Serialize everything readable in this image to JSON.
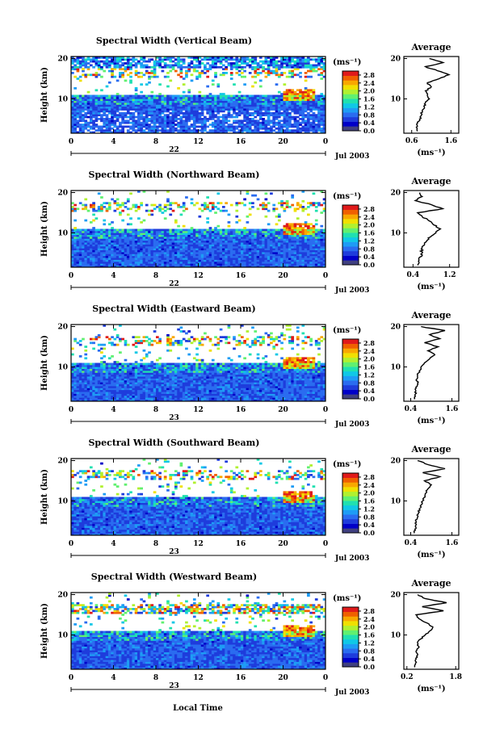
{
  "figure": {
    "xlabel": "Local Time",
    "ylabel": "Height (km)",
    "date_label": "Jul 2003",
    "unit_label": "(ms⁻¹)",
    "avg_unit_label": "(ms⁻¹)",
    "avg_title": "Average",
    "colors": [
      "#404080",
      "#0000c8",
      "#1e3cdc",
      "#2a6cf0",
      "#1e9cf5",
      "#10c8e6",
      "#20e0b0",
      "#60f070",
      "#b0f030",
      "#f0e000",
      "#f8a800",
      "#f06000",
      "#e01a1a"
    ]
  },
  "chart_data": [
    {
      "type": "heatmap",
      "title": "Spectral Width (Vertical Beam)",
      "xlabel": "Local Time",
      "ylabel": "Height (km)",
      "x_ticks": [
        "0",
        "4",
        "8",
        "12",
        "16",
        "20",
        "0"
      ],
      "xlim": [
        0,
        24
      ],
      "y_ticks": [
        "10",
        "20"
      ],
      "ylim": [
        1.5,
        20.5
      ],
      "day_label": "22",
      "colorbar_ticks": [
        "0.0",
        "0.4",
        "0.8",
        "1.2",
        "1.6",
        "2.0",
        "2.4",
        "2.8"
      ],
      "colorbar_range": [
        0.0,
        3.0
      ],
      "average": {
        "title": "Average",
        "xlabel": "(ms⁻¹)",
        "x_ticks": [
          "0.6",
          "1.6"
        ],
        "xlim": [
          0.4,
          1.8
        ],
        "heights": [
          2,
          3,
          4,
          5,
          6,
          7,
          8,
          9,
          10,
          11,
          12,
          13,
          14,
          15,
          16,
          17,
          18,
          19,
          20
        ],
        "values": [
          0.75,
          0.72,
          0.75,
          0.8,
          0.85,
          0.87,
          0.92,
          0.95,
          1.05,
          1.0,
          0.95,
          1.1,
          1.0,
          1.3,
          1.55,
          1.25,
          0.95,
          1.4,
          1.05
        ]
      }
    },
    {
      "type": "heatmap",
      "title": "Spectral Width (Northward Beam)",
      "xlabel": "Local Time",
      "ylabel": "Height (km)",
      "x_ticks": [
        "0",
        "4",
        "8",
        "12",
        "16",
        "20",
        "0"
      ],
      "xlim": [
        0,
        24
      ],
      "y_ticks": [
        "10",
        "20"
      ],
      "ylim": [
        1.5,
        20.5
      ],
      "day_label": "22",
      "colorbar_ticks": [
        "0.0",
        "0.4",
        "0.8",
        "1.2",
        "1.6",
        "2.0",
        "2.4",
        "2.8"
      ],
      "colorbar_range": [
        0.0,
        3.0
      ],
      "average": {
        "title": "Average",
        "xlabel": "(ms⁻¹)",
        "x_ticks": [
          "0.4",
          "1.2"
        ],
        "xlim": [
          0.2,
          1.4
        ],
        "heights": [
          2,
          3,
          4,
          5,
          6,
          7,
          8,
          9,
          10,
          11,
          12,
          13,
          14,
          15,
          16,
          17,
          18,
          19,
          20
        ],
        "values": [
          0.5,
          0.52,
          0.55,
          0.6,
          0.58,
          0.65,
          0.7,
          0.78,
          0.9,
          1.0,
          0.85,
          0.75,
          0.6,
          0.5,
          1.05,
          0.8,
          0.45,
          0.6,
          0.55
        ]
      }
    },
    {
      "type": "heatmap",
      "title": "Spectral Width (Eastward Beam)",
      "xlabel": "Local Time",
      "ylabel": "Height (km)",
      "x_ticks": [
        "0",
        "4",
        "8",
        "12",
        "16",
        "20",
        "0"
      ],
      "xlim": [
        0,
        24
      ],
      "y_ticks": [
        "10",
        "20"
      ],
      "ylim": [
        1.5,
        20.5
      ],
      "day_label": "23",
      "colorbar_ticks": [
        "0.0",
        "0.4",
        "0.8",
        "1.2",
        "1.6",
        "2.0",
        "2.4",
        "2.8"
      ],
      "colorbar_range": [
        0.0,
        3.0
      ],
      "average": {
        "title": "Average",
        "xlabel": "(ms⁻¹)",
        "x_ticks": [
          "0.4",
          "1.6"
        ],
        "xlim": [
          0.2,
          1.8
        ],
        "heights": [
          2,
          3,
          4,
          5,
          6,
          7,
          8,
          9,
          10,
          11,
          12,
          13,
          14,
          15,
          16,
          17,
          18,
          19,
          20
        ],
        "values": [
          0.5,
          0.52,
          0.55,
          0.55,
          0.6,
          0.58,
          0.6,
          0.65,
          0.7,
          0.8,
          0.95,
          1.1,
          0.9,
          1.2,
          0.8,
          1.25,
          0.95,
          1.4,
          0.7
        ]
      }
    },
    {
      "type": "heatmap",
      "title": "Spectral Width (Southward Beam)",
      "xlabel": "Local Time",
      "ylabel": "Height (km)",
      "x_ticks": [
        "0",
        "4",
        "8",
        "12",
        "16",
        "20",
        "0"
      ],
      "xlim": [
        0,
        24
      ],
      "y_ticks": [
        "10",
        "20"
      ],
      "ylim": [
        1.5,
        20.5
      ],
      "day_label": "23",
      "colorbar_ticks": [
        "0.0",
        "0.4",
        "0.8",
        "1.2",
        "1.6",
        "2.0",
        "2.4",
        "2.8"
      ],
      "colorbar_range": [
        0.0,
        3.0
      ],
      "average": {
        "title": "Average",
        "xlabel": "(ms⁻¹)",
        "x_ticks": [
          "0.4",
          "1.6"
        ],
        "xlim": [
          0.2,
          1.8
        ],
        "heights": [
          2,
          3,
          4,
          5,
          6,
          7,
          8,
          9,
          10,
          11,
          12,
          13,
          14,
          15,
          16,
          17,
          18,
          19,
          20
        ],
        "values": [
          0.5,
          0.52,
          0.55,
          0.55,
          0.6,
          0.62,
          0.65,
          0.7,
          0.75,
          0.82,
          0.85,
          0.9,
          1.0,
          0.8,
          1.25,
          0.75,
          1.4,
          0.9,
          0.6
        ]
      }
    },
    {
      "type": "heatmap",
      "title": "Spectral Width (Westward Beam)",
      "xlabel": "Local Time",
      "ylabel": "Height (km)",
      "x_ticks": [
        "0",
        "4",
        "8",
        "12",
        "16",
        "20",
        "0"
      ],
      "xlim": [
        0,
        24
      ],
      "y_ticks": [
        "10",
        "20"
      ],
      "ylim": [
        1.5,
        20.5
      ],
      "day_label": "23",
      "colorbar_ticks": [
        "0.0",
        "0.4",
        "0.8",
        "1.2",
        "1.6",
        "2.0",
        "2.4",
        "2.8"
      ],
      "colorbar_range": [
        0.0,
        3.0
      ],
      "average": {
        "title": "Average",
        "xlabel": "(ms⁻¹)",
        "x_ticks": [
          "0.2",
          "1.8"
        ],
        "xlim": [
          0.1,
          1.9
        ],
        "heights": [
          2,
          3,
          4,
          5,
          6,
          7,
          8,
          9,
          10,
          11,
          12,
          13,
          14,
          15,
          16,
          17,
          18,
          19,
          20
        ],
        "values": [
          0.45,
          0.48,
          0.5,
          0.55,
          0.5,
          0.6,
          0.55,
          0.65,
          0.8,
          0.95,
          1.05,
          0.85,
          0.6,
          0.5,
          1.4,
          0.7,
          1.5,
          0.8,
          0.55
        ]
      }
    }
  ]
}
